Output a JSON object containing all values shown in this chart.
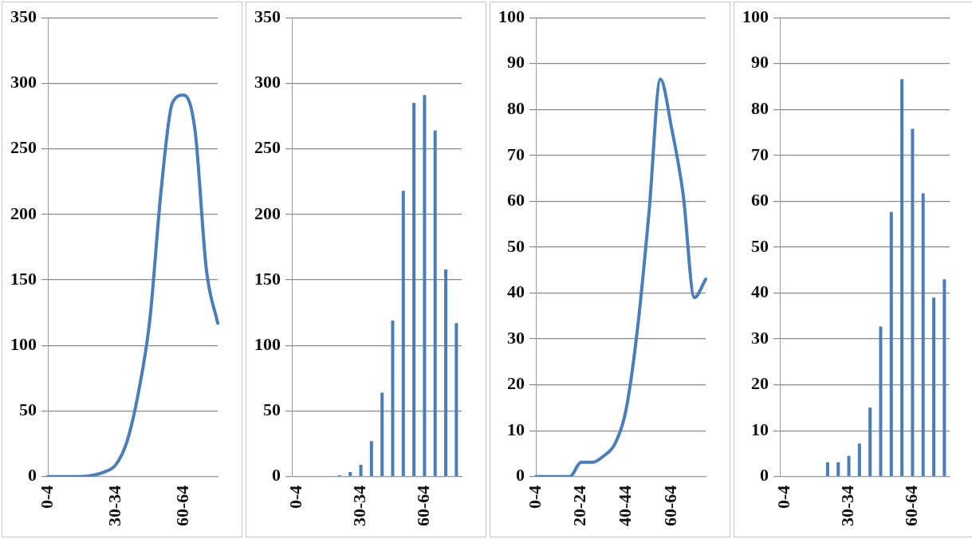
{
  "chart_data": [
    {
      "type": "line",
      "categories": [
        "0-4",
        null,
        null,
        null,
        null,
        null,
        "30-34",
        null,
        null,
        null,
        null,
        null,
        "60-64",
        null,
        null,
        null
      ],
      "values": [
        0,
        0,
        0,
        0,
        1,
        3.5,
        9,
        27,
        64,
        119,
        218,
        285,
        291,
        264,
        158,
        117
      ],
      "color": "#4a7ebb",
      "ylim": [
        0,
        350
      ],
      "yticks": [
        0,
        50,
        100,
        150,
        200,
        250,
        300,
        350
      ],
      "grid": "y",
      "legend": false,
      "marker": "none",
      "line_style": "solid"
    },
    {
      "type": "bar",
      "categories": [
        "0-4",
        null,
        null,
        null,
        null,
        null,
        "30-34",
        null,
        null,
        null,
        null,
        null,
        "60-64",
        null,
        null,
        null
      ],
      "values": [
        0,
        0,
        0,
        0,
        1,
        3.5,
        9,
        27,
        64,
        119,
        218,
        285,
        291,
        264,
        158,
        117
      ],
      "color": "#4a7ebb",
      "ylim": [
        0,
        350
      ],
      "yticks": [
        0,
        50,
        100,
        150,
        200,
        250,
        300,
        350
      ],
      "grid": "y",
      "legend": false
    },
    {
      "type": "line",
      "categories": [
        "0-4",
        null,
        null,
        null,
        "20-24",
        null,
        null,
        null,
        "40-44",
        null,
        null,
        null,
        "60-64",
        null,
        null,
        null
      ],
      "values": [
        0,
        0,
        0,
        0,
        3.1,
        3.1,
        4.5,
        7.2,
        15,
        32.7,
        57.7,
        86.6,
        75.8,
        61.7,
        39,
        43
      ],
      "color": "#4a7ebb",
      "ylim": [
        0,
        100
      ],
      "yticks": [
        0,
        10,
        20,
        30,
        40,
        50,
        60,
        70,
        80,
        90,
        100
      ],
      "grid": "y",
      "legend": false,
      "marker": "none",
      "line_style": "solid"
    },
    {
      "type": "bar",
      "categories": [
        "0-4",
        null,
        null,
        null,
        null,
        null,
        "30-34",
        null,
        null,
        null,
        null,
        null,
        "60-64",
        null,
        null,
        null
      ],
      "values": [
        0,
        0,
        0,
        0,
        3.1,
        3.1,
        4.5,
        7.2,
        15,
        32.7,
        57.7,
        86.6,
        75.8,
        61.7,
        39,
        43
      ],
      "color": "#4a7ebb",
      "ylim": [
        0,
        100
      ],
      "yticks": [
        0,
        10,
        20,
        30,
        40,
        50,
        60,
        70,
        80,
        90,
        100
      ],
      "grid": "y",
      "legend": false
    }
  ]
}
